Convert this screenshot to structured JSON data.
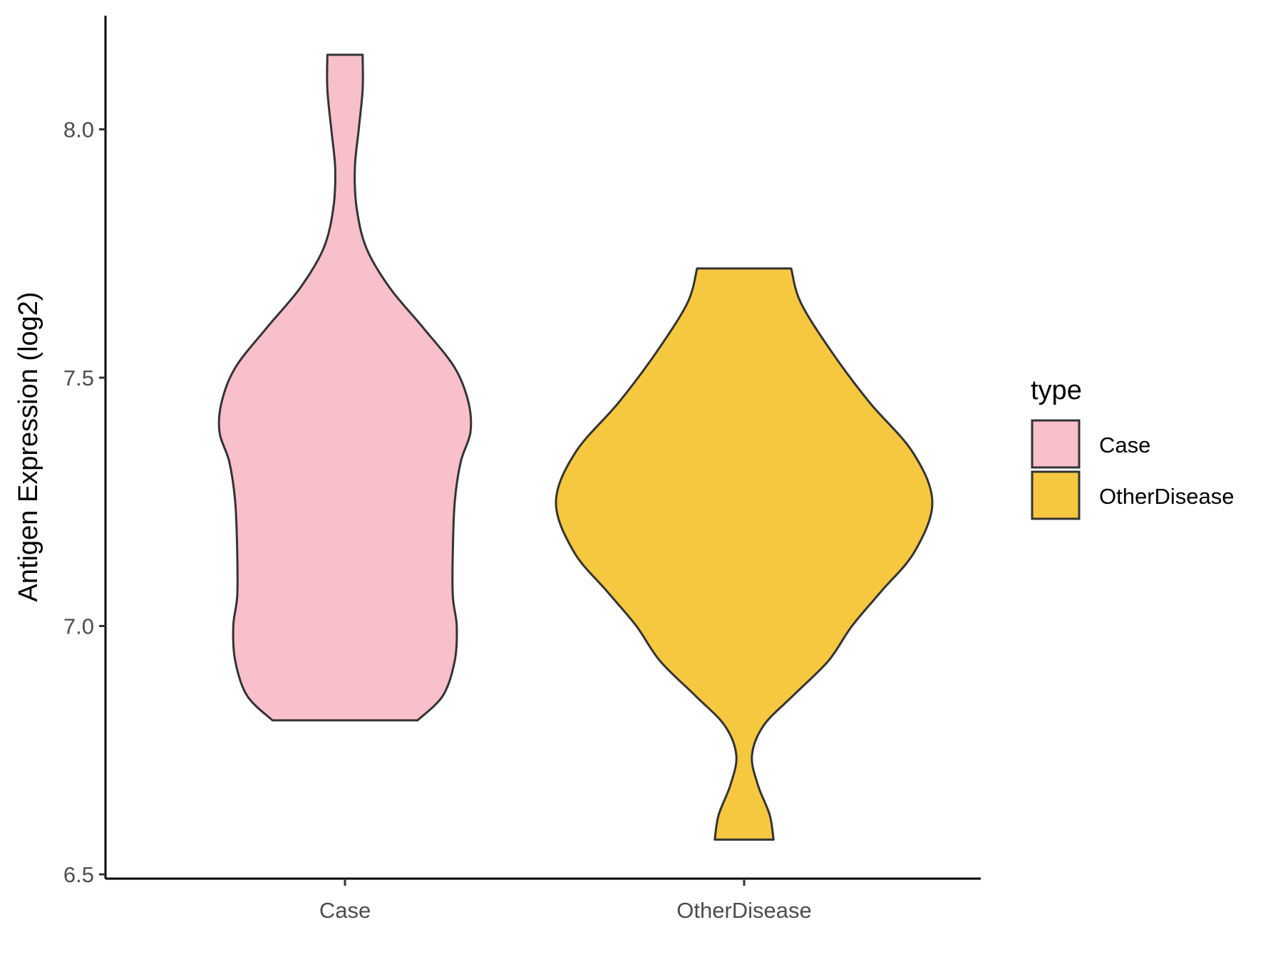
{
  "chart_data": {
    "type": "violin",
    "title": "",
    "xlabel": "",
    "ylabel": "Antigen Expression (log2)",
    "ylim": [
      6.5,
      8.23
    ],
    "yticks": [
      6.5,
      7.0,
      7.5,
      8.0
    ],
    "ytick_labels": [
      "6.5",
      "7.0",
      "7.5",
      "8.0"
    ],
    "categories": [
      "Case",
      "OtherDisease"
    ],
    "grid": false,
    "legend": {
      "title": "type",
      "placement": "right",
      "entries": [
        "Case",
        "OtherDisease"
      ]
    },
    "series": [
      {
        "name": "Case",
        "color": "#F8C0CB",
        "min": 6.81,
        "max": 8.15,
        "density_profile": [
          [
            6.81,
            0.37
          ],
          [
            6.86,
            0.5
          ],
          [
            6.93,
            0.56
          ],
          [
            7.0,
            0.57
          ],
          [
            7.06,
            0.55
          ],
          [
            7.15,
            0.55
          ],
          [
            7.25,
            0.56
          ],
          [
            7.33,
            0.59
          ],
          [
            7.39,
            0.64
          ],
          [
            7.45,
            0.63
          ],
          [
            7.52,
            0.56
          ],
          [
            7.6,
            0.4
          ],
          [
            7.68,
            0.23
          ],
          [
            7.76,
            0.11
          ],
          [
            7.84,
            0.06
          ],
          [
            7.92,
            0.05
          ],
          [
            8.0,
            0.07
          ],
          [
            8.08,
            0.09
          ],
          [
            8.15,
            0.09
          ]
        ]
      },
      {
        "name": "OtherDisease",
        "color": "#F6C840",
        "min": 6.57,
        "max": 7.72,
        "density_profile": [
          [
            6.57,
            0.15
          ],
          [
            6.62,
            0.13
          ],
          [
            6.68,
            0.07
          ],
          [
            6.74,
            0.04
          ],
          [
            6.8,
            0.1
          ],
          [
            6.86,
            0.25
          ],
          [
            6.93,
            0.43
          ],
          [
            7.0,
            0.55
          ],
          [
            7.07,
            0.7
          ],
          [
            7.15,
            0.87
          ],
          [
            7.25,
            0.96
          ],
          [
            7.35,
            0.86
          ],
          [
            7.45,
            0.64
          ],
          [
            7.55,
            0.45
          ],
          [
            7.65,
            0.29
          ],
          [
            7.72,
            0.24
          ]
        ]
      }
    ]
  }
}
